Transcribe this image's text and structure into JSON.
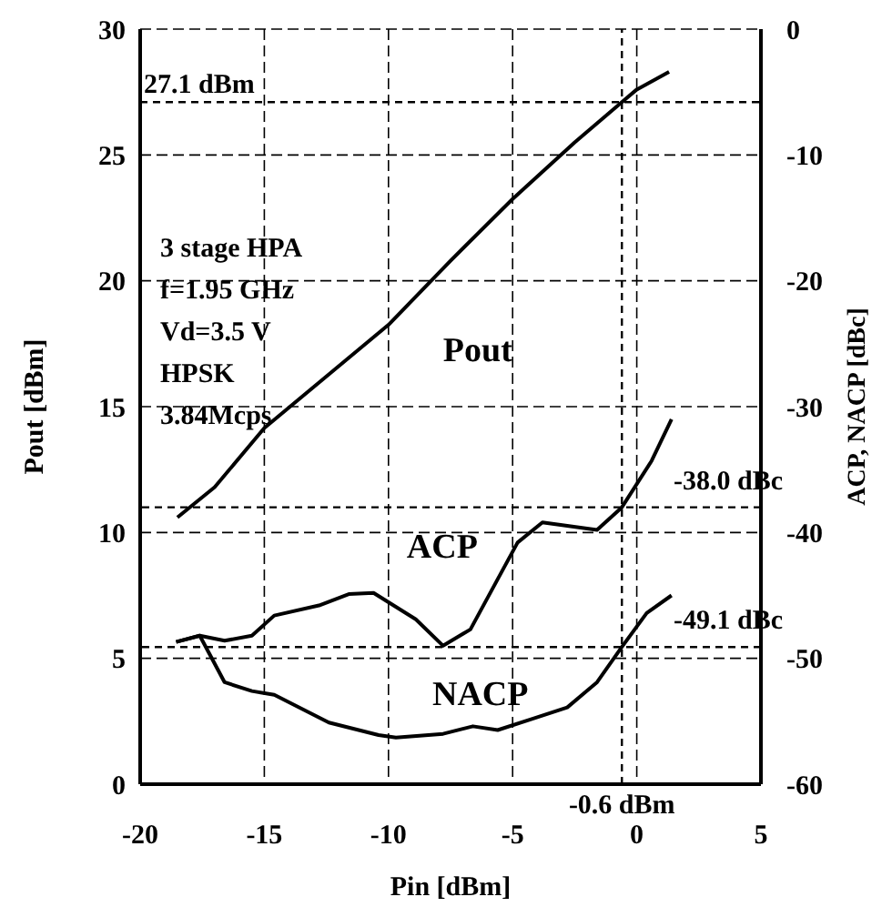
{
  "chart_data": {
    "type": "line",
    "xlabel": "Pin [dBm]",
    "ylabel": "Pout [dBm]",
    "y2label": "ACP, NACP [dBc]",
    "xlim": [
      -20,
      5
    ],
    "xticks": [
      -20,
      -15,
      -10,
      -5,
      0,
      5
    ],
    "ylim": [
      0,
      30
    ],
    "yticks": [
      0,
      5,
      10,
      15,
      20,
      25,
      30
    ],
    "y2lim": [
      -60,
      0
    ],
    "y2ticks": [
      -60,
      -50,
      -40,
      -30,
      -20,
      -10,
      0
    ],
    "grid": true,
    "marker": "none",
    "series": [
      {
        "name": "Pout",
        "color": "#000000",
        "x": [
          -18.5,
          -17,
          -15,
          -12.5,
          -10,
          -7.5,
          -5,
          -2.5,
          -0.6,
          0,
          1.3
        ],
        "values": [
          10.6,
          11.8,
          14.15,
          16.2,
          18.25,
          20.8,
          23.25,
          25.5,
          27.1,
          27.6,
          28.3
        ]
      },
      {
        "name": "ACP",
        "color": "#000000",
        "axis": "y2",
        "x": [
          -18.55,
          -17.6,
          -16.6,
          -15.5,
          -14.6,
          -12.8,
          -11.6,
          -10.6,
          -8.9,
          -7.8,
          -6.7,
          -4.8,
          -3.8,
          -1.6,
          -0.6,
          0.6,
          1.4
        ],
        "values": [
          -48.7,
          -48.2,
          -48.6,
          -48.2,
          -46.6,
          -45.8,
          -44.9,
          -44.8,
          -46.9,
          -49.0,
          -47.7,
          -40.8,
          -39.2,
          -39.8,
          -38.0,
          -34.3,
          -31.0
        ]
      },
      {
        "name": "NACP",
        "color": "#000000",
        "axis": "y2",
        "x": [
          -18.55,
          -17.6,
          -16.6,
          -15.5,
          -14.6,
          -12.4,
          -10.4,
          -9.7,
          -7.8,
          -6.6,
          -5.6,
          -4.2,
          -2.8,
          -1.6,
          -0.6,
          0.4,
          1.4
        ],
        "values": [
          -48.7,
          -48.2,
          -51.9,
          -52.6,
          -52.9,
          -55.1,
          -56.1,
          -56.3,
          -56.0,
          -55.4,
          -55.7,
          -54.8,
          -53.9,
          -51.9,
          -49.1,
          -46.4,
          -45.0
        ]
      }
    ],
    "ref_lines": [
      {
        "axis": "y",
        "value": 27.1,
        "label": "27.1 dBm",
        "line_style": "dashed"
      },
      {
        "axis": "y2",
        "value": -38.0,
        "label": "-38.0 dBc",
        "line_style": "dashed"
      },
      {
        "axis": "y2",
        "value": -49.1,
        "label": "-49.1 dBc",
        "line_style": "dashed"
      },
      {
        "axis": "x",
        "value": -0.6,
        "label": "-0.6 dBm",
        "line_style": "dashed"
      }
    ],
    "annotations": [
      "3 stage HPA",
      "f=1.95 GHz",
      "Vd=3.5 V",
      "HPSK",
      "3.84Mcps"
    ]
  }
}
